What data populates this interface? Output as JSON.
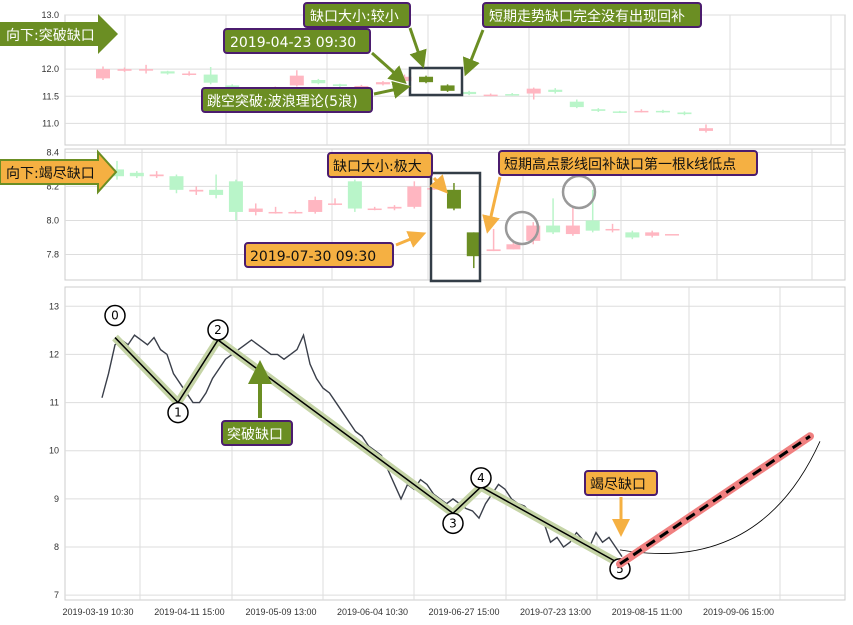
{
  "colors": {
    "up": "#ffb6c1",
    "down": "#b9f5c9",
    "gap_down": "#6b8e23",
    "green_label": "#6b8e23",
    "orange_label": "#f5b042",
    "label_border": "#4b1c6e",
    "line": "#3a3f4a",
    "wave": "#000000",
    "wave_glow": "#c5d4a6",
    "forecast": "#f08080"
  },
  "chart_data": [
    {
      "type": "candlestick",
      "title": "向下:突破缺口",
      "ylim": [
        10.6,
        13.0
      ],
      "yticks": [
        "13.0",
        "12.0",
        "11.5",
        "11.0"
      ],
      "grid": true,
      "candles": [
        [
          11.83,
          12.0,
          12.05,
          11.8
        ],
        [
          11.97,
          12.0,
          12.03,
          11.95
        ],
        [
          12.0,
          12.0,
          12.08,
          11.92
        ],
        [
          11.96,
          11.92,
          11.97,
          11.9
        ],
        [
          11.92,
          11.92,
          11.96,
          11.88
        ],
        [
          11.9,
          11.75,
          12.04,
          11.72
        ],
        [
          11.7,
          11.66,
          11.72,
          11.64
        ],
        [
          11.65,
          11.65,
          11.67,
          11.62
        ],
        [
          11.64,
          11.66,
          11.68,
          11.62
        ],
        [
          11.7,
          11.88,
          11.98,
          11.68
        ],
        [
          11.8,
          11.74,
          11.82,
          11.72
        ],
        [
          11.72,
          11.69,
          11.73,
          11.67
        ],
        [
          11.67,
          11.69,
          11.71,
          11.65
        ],
        [
          11.72,
          11.76,
          11.78,
          11.7
        ],
        [
          11.78,
          11.86,
          11.9,
          11.76
        ],
        [
          11.86,
          11.76,
          11.88,
          11.74
        ],
        [
          11.7,
          11.6,
          11.72,
          11.58
        ],
        [
          11.58,
          11.54,
          11.6,
          11.52
        ],
        [
          11.52,
          11.53,
          11.55,
          11.5
        ],
        [
          11.54,
          11.53,
          11.56,
          11.51
        ],
        [
          11.55,
          11.64,
          11.66,
          11.44
        ],
        [
          11.62,
          11.58,
          11.65,
          11.55
        ],
        [
          11.4,
          11.3,
          11.44,
          11.28
        ],
        [
          11.26,
          11.23,
          11.28,
          11.21
        ],
        [
          11.22,
          11.21,
          11.23,
          11.19
        ],
        [
          11.21,
          11.23,
          11.26,
          11.2
        ],
        [
          11.23,
          11.21,
          11.25,
          11.19
        ],
        [
          11.2,
          11.17,
          11.22,
          11.15
        ],
        [
          10.86,
          10.91,
          10.98,
          10.83
        ]
      ],
      "gap_candles": [
        15,
        16
      ],
      "annotations": [
        "缺口大小:较小",
        "短期走势缺口完全没有出现回补",
        "2019-04-23 09:30",
        "跳空突破:波浪理论(5浪)"
      ]
    },
    {
      "type": "candlestick",
      "title": "向下:竭尽缺口",
      "ylim": [
        7.65,
        8.42
      ],
      "yticks": [
        "8.4",
        "8.2",
        "8.0",
        "7.8"
      ],
      "grid": true,
      "candles": [
        [
          8.3,
          8.26,
          8.35,
          8.24
        ],
        [
          8.28,
          8.26,
          8.29,
          8.25
        ],
        [
          8.26,
          8.27,
          8.29,
          8.25
        ],
        [
          8.26,
          8.18,
          8.27,
          8.16
        ],
        [
          8.17,
          8.18,
          8.2,
          8.15
        ],
        [
          8.18,
          8.15,
          8.27,
          8.13
        ],
        [
          8.23,
          8.05,
          8.24,
          8.0
        ],
        [
          8.05,
          8.07,
          8.1,
          8.03
        ],
        [
          8.05,
          8.05,
          8.08,
          8.04
        ],
        [
          8.05,
          8.05,
          8.06,
          8.04
        ],
        [
          8.05,
          8.12,
          8.14,
          8.04
        ],
        [
          8.1,
          8.1,
          8.13,
          8.09
        ],
        [
          8.23,
          8.07,
          8.24,
          8.05
        ],
        [
          8.07,
          8.07,
          8.08,
          8.06
        ],
        [
          8.07,
          8.08,
          8.09,
          8.06
        ],
        [
          8.08,
          8.2,
          8.23,
          8.07
        ],
        [
          8.19,
          8.19,
          8.2,
          8.18
        ],
        [
          8.18,
          8.07,
          8.22,
          8.06
        ],
        [
          7.93,
          7.79,
          7.93,
          7.72
        ],
        [
          7.82,
          7.83,
          7.95,
          7.82
        ],
        [
          7.83,
          7.86,
          7.87,
          7.83
        ],
        [
          7.88,
          7.97,
          7.99,
          7.86
        ],
        [
          7.97,
          7.93,
          8.13,
          7.92
        ],
        [
          7.92,
          7.97,
          8.08,
          7.91
        ],
        [
          8.0,
          7.94,
          8.18,
          7.93
        ],
        [
          7.95,
          7.95,
          7.98,
          7.93
        ],
        [
          7.93,
          7.9,
          7.94,
          7.89
        ],
        [
          7.91,
          7.93,
          7.94,
          7.9
        ],
        [
          7.92,
          7.92,
          7.92,
          7.92
        ]
      ],
      "gap_candles": [
        17,
        18
      ],
      "annotations": [
        "缺口大小:极大",
        "短期高点影线回补缺口第一根k线低点",
        "2019-07-30 09:30"
      ]
    },
    {
      "type": "line",
      "ylim": [
        6.9,
        13.4
      ],
      "yticks": [
        "13",
        "12",
        "11",
        "10",
        "9",
        "8",
        "7"
      ],
      "xticks": [
        "2019-03-19 10:30",
        "2019-04-11 15:00",
        "2019-05-09 13:00",
        "2019-06-04 10:30",
        "2019-06-27 15:00",
        "2019-07-23 13:00",
        "2019-08-15 11:00",
        "2019-09-06 15:00"
      ],
      "grid": true,
      "price": [
        11.1,
        11.6,
        12.2,
        12.3,
        12.2,
        12.4,
        12.3,
        12.2,
        12.35,
        12.1,
        12.0,
        11.6,
        11.4,
        11.2,
        11.0,
        11.0,
        11.2,
        11.5,
        11.7,
        11.9,
        12.0,
        12.1,
        12.2,
        12.3,
        12.2,
        12.1,
        12.0,
        12.0,
        11.9,
        12.0,
        12.1,
        12.4,
        11.8,
        11.5,
        11.3,
        11.2,
        11.0,
        10.8,
        10.6,
        10.4,
        10.3,
        10.1,
        10.0,
        9.9,
        9.6,
        9.3,
        9.0,
        9.3,
        9.2,
        9.4,
        9.3,
        9.1,
        9.0,
        8.9,
        9.0,
        8.9,
        8.8,
        8.75,
        8.6,
        8.9,
        9.1,
        9.3,
        9.2,
        9.0,
        8.9,
        8.85,
        8.7,
        8.6,
        8.5,
        8.1,
        8.2,
        8.0,
        8.1,
        8.3,
        8.15,
        8.0,
        8.3,
        8.1,
        8.2,
        8.0,
        7.8
      ],
      "wave_points": [
        {
          "label": "0",
          "value": 12.35
        },
        {
          "label": "1",
          "value": 11.0
        },
        {
          "label": "2",
          "value": 12.3
        },
        {
          "label": "3",
          "value": 8.7
        },
        {
          "label": "4",
          "value": 9.25
        },
        {
          "label": "5",
          "value": 7.65
        }
      ],
      "forecast_end": 10.3,
      "annotations": [
        "突破缺口",
        "竭尽缺口"
      ]
    }
  ]
}
